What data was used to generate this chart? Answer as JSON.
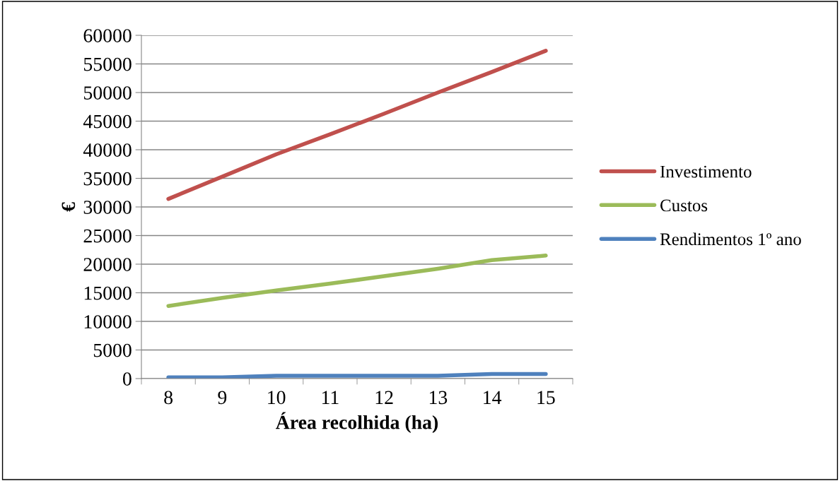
{
  "chart_data": {
    "type": "line",
    "xlabel": "Área recolhida (ha)",
    "ylabel": "€",
    "categories": [
      "8",
      "9",
      "10",
      "11",
      "12",
      "13",
      "14",
      "15"
    ],
    "series": [
      {
        "name": "Investimento",
        "color": "#c0504d",
        "values": [
          31400,
          35300,
          39200,
          42700,
          46300,
          50000,
          53600,
          57300
        ]
      },
      {
        "name": "Custos",
        "color": "#9bbb59",
        "values": [
          12700,
          14100,
          15400,
          16600,
          17900,
          19200,
          20700,
          21500
        ]
      },
      {
        "name": "Rendimentos 1º ano",
        "color": "#4f81bd",
        "values": [
          200,
          200,
          500,
          500,
          500,
          500,
          800,
          800
        ]
      }
    ],
    "ylim": [
      0,
      60000
    ],
    "yticks": [
      0,
      5000,
      10000,
      15000,
      20000,
      25000,
      30000,
      35000,
      40000,
      45000,
      50000,
      55000,
      60000
    ],
    "grid": "y",
    "legend": "right",
    "marker": "none",
    "line_style": "solid"
  }
}
